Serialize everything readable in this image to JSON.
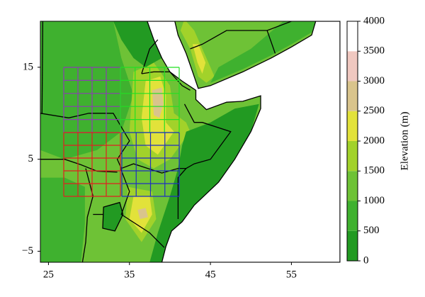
{
  "map": {
    "xlim": [
      24,
      61
    ],
    "ylim": [
      -6.2,
      20
    ],
    "xticks": [
      25,
      35,
      45,
      55
    ],
    "yticks": [
      15,
      5,
      {
        "value": -5,
        "label": "−5"
      }
    ]
  },
  "colorbar": {
    "label": "Elevation (m)",
    "lim": [
      0,
      4000
    ],
    "ticks": [
      0,
      500,
      1000,
      1500,
      2000,
      2500,
      3000,
      3500,
      4000
    ],
    "colors": [
      "#229a22",
      "#3fb12f",
      "#6ec236",
      "#a2d22a",
      "#e2e23a",
      "#d9c48c",
      "#f0c8c0",
      "#ffffff"
    ]
  }
}
